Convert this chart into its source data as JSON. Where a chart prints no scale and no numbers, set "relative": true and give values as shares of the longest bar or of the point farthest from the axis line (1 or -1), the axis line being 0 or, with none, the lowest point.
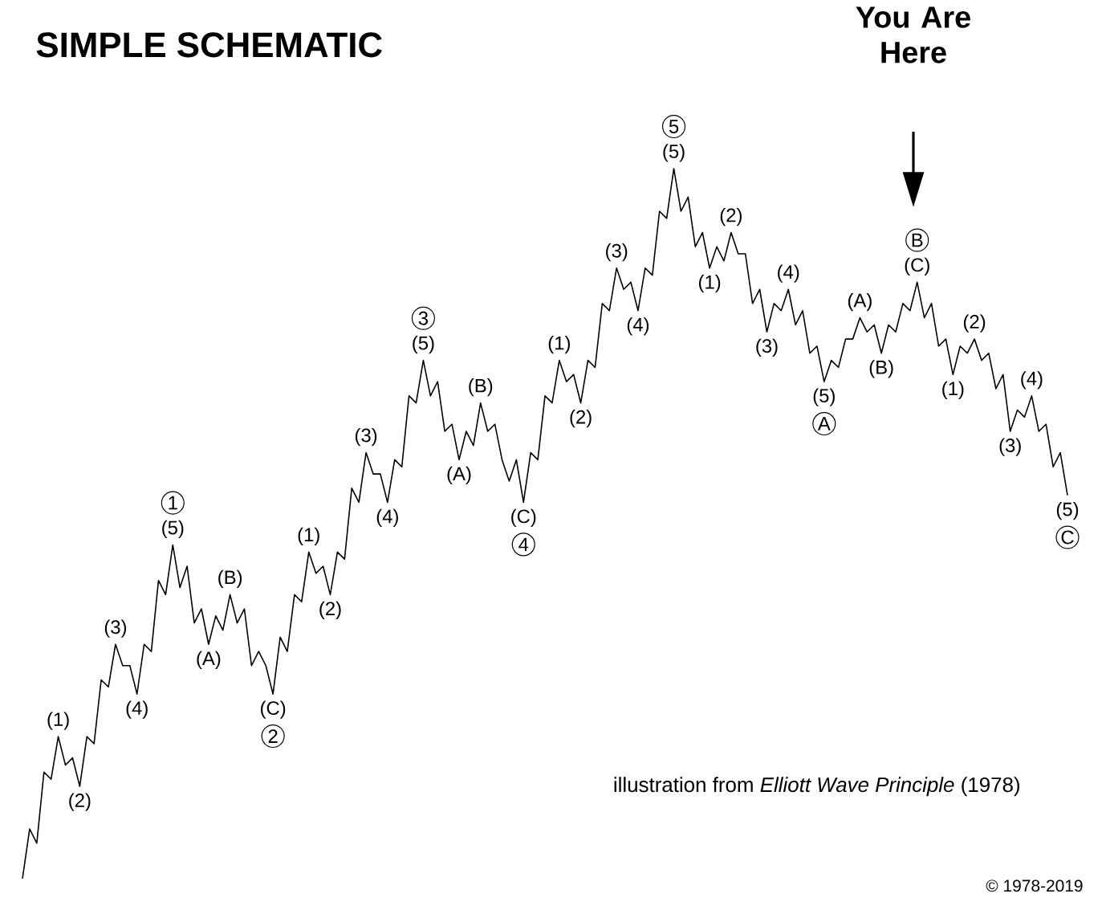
{
  "chart_data": {
    "type": "line",
    "title": "SIMPLE SCHEMATIC",
    "relative": true,
    "categories": [
      null,
      null,
      null,
      null,
      null,
      null,
      null,
      null,
      null,
      null,
      null,
      null,
      null,
      null,
      null,
      null,
      null,
      null,
      null,
      null,
      null,
      null,
      null,
      null,
      null,
      null,
      null,
      null,
      null,
      null,
      null,
      null,
      null,
      null,
      null,
      null,
      null,
      null,
      null,
      null,
      null,
      null,
      null,
      null,
      null,
      null,
      null,
      null,
      null,
      null,
      null,
      null,
      null,
      null,
      null,
      null,
      null,
      null,
      null,
      null,
      null,
      null,
      null,
      null,
      null,
      null,
      null,
      null,
      null,
      null,
      null,
      null,
      null,
      null,
      null,
      null,
      null,
      null,
      null,
      null,
      null,
      null,
      null,
      null,
      null,
      null,
      null,
      null,
      null,
      null,
      null,
      null,
      null,
      null,
      null,
      null,
      null,
      null,
      null,
      null,
      null,
      null,
      null,
      null,
      null,
      null,
      null,
      null,
      null,
      null,
      null,
      null,
      null,
      null,
      null,
      null,
      null,
      null,
      null,
      null,
      null,
      null,
      null,
      null,
      null,
      null,
      null,
      null,
      null,
      null,
      null,
      null,
      null,
      null,
      null,
      null,
      null,
      null,
      null,
      null,
      null,
      null,
      null,
      null,
      null,
      null,
      null
    ],
    "series": [
      {
        "color": "#000000",
        "values": [
          0,
          0.07,
          0.05,
          0.15,
          0.14,
          0.2,
          0.16,
          0.17,
          0.13,
          0.2,
          0.19,
          0.28,
          0.27,
          0.33,
          0.3,
          0.3,
          0.26,
          0.33,
          0.32,
          0.42,
          0.4,
          0.47,
          0.41,
          0.44,
          0.36,
          0.38,
          0.33,
          0.37,
          0.35,
          0.4,
          0.36,
          0.38,
          0.3,
          0.32,
          0.3,
          0.26,
          0.34,
          0.32,
          0.4,
          0.39,
          0.46,
          0.43,
          0.44,
          0.4,
          0.46,
          0.45,
          0.55,
          0.53,
          0.6,
          0.57,
          0.57,
          0.53,
          0.59,
          0.58,
          0.68,
          0.67,
          0.73,
          0.68,
          0.7,
          0.63,
          0.64,
          0.59,
          0.63,
          0.61,
          0.67,
          0.63,
          0.64,
          0.59,
          0.56,
          0.59,
          0.53,
          0.6,
          0.59,
          0.68,
          0.67,
          0.73,
          0.7,
          0.71,
          0.67,
          0.73,
          0.72,
          0.81,
          0.8,
          0.86,
          0.83,
          0.84,
          0.8,
          0.86,
          0.85,
          0.94,
          0.93,
          1,
          0.94,
          0.96,
          0.89,
          0.91,
          0.86,
          0.89,
          0.87,
          0.91,
          0.88,
          0.88,
          0.81,
          0.83,
          0.77,
          0.81,
          0.8,
          0.83,
          0.78,
          0.8,
          0.74,
          0.75,
          0.7,
          0.73,
          0.72,
          0.76,
          0.76,
          0.79,
          0.77,
          0.78,
          0.74,
          0.78,
          0.77,
          0.81,
          0.8,
          0.84,
          0.79,
          0.81,
          0.75,
          0.76,
          0.71,
          0.75,
          0.74,
          0.76,
          0.73,
          0.74,
          0.69,
          0.71,
          0.63,
          0.66,
          0.65,
          0.68,
          0.63,
          0.64,
          0.58,
          0.6,
          0.54
        ]
      }
    ],
    "annotations": [
      "(1)",
      "(2)",
      "(3)",
      "(4)",
      "1",
      "(5)",
      "(A)",
      "(B)",
      "(C)",
      "2",
      "(1)",
      "(2)",
      "(3)",
      "(4)",
      "3",
      "(5)",
      "(A)",
      "(B)",
      "(C)",
      "4",
      "(1)",
      "(2)",
      "(3)",
      "(4)",
      "5",
      "(5)",
      "(1)",
      "(2)",
      "(3)",
      "(4)",
      "(5)",
      "A",
      "(A)",
      "(B)",
      "B",
      "(C)",
      "(1)",
      "(2)",
      "(3)",
      "(4)",
      "(5)",
      "C",
      "You Are Here",
      "illustration from *Elliott Wave Principle* (1978)",
      "© 1978-2019"
    ]
  }
}
